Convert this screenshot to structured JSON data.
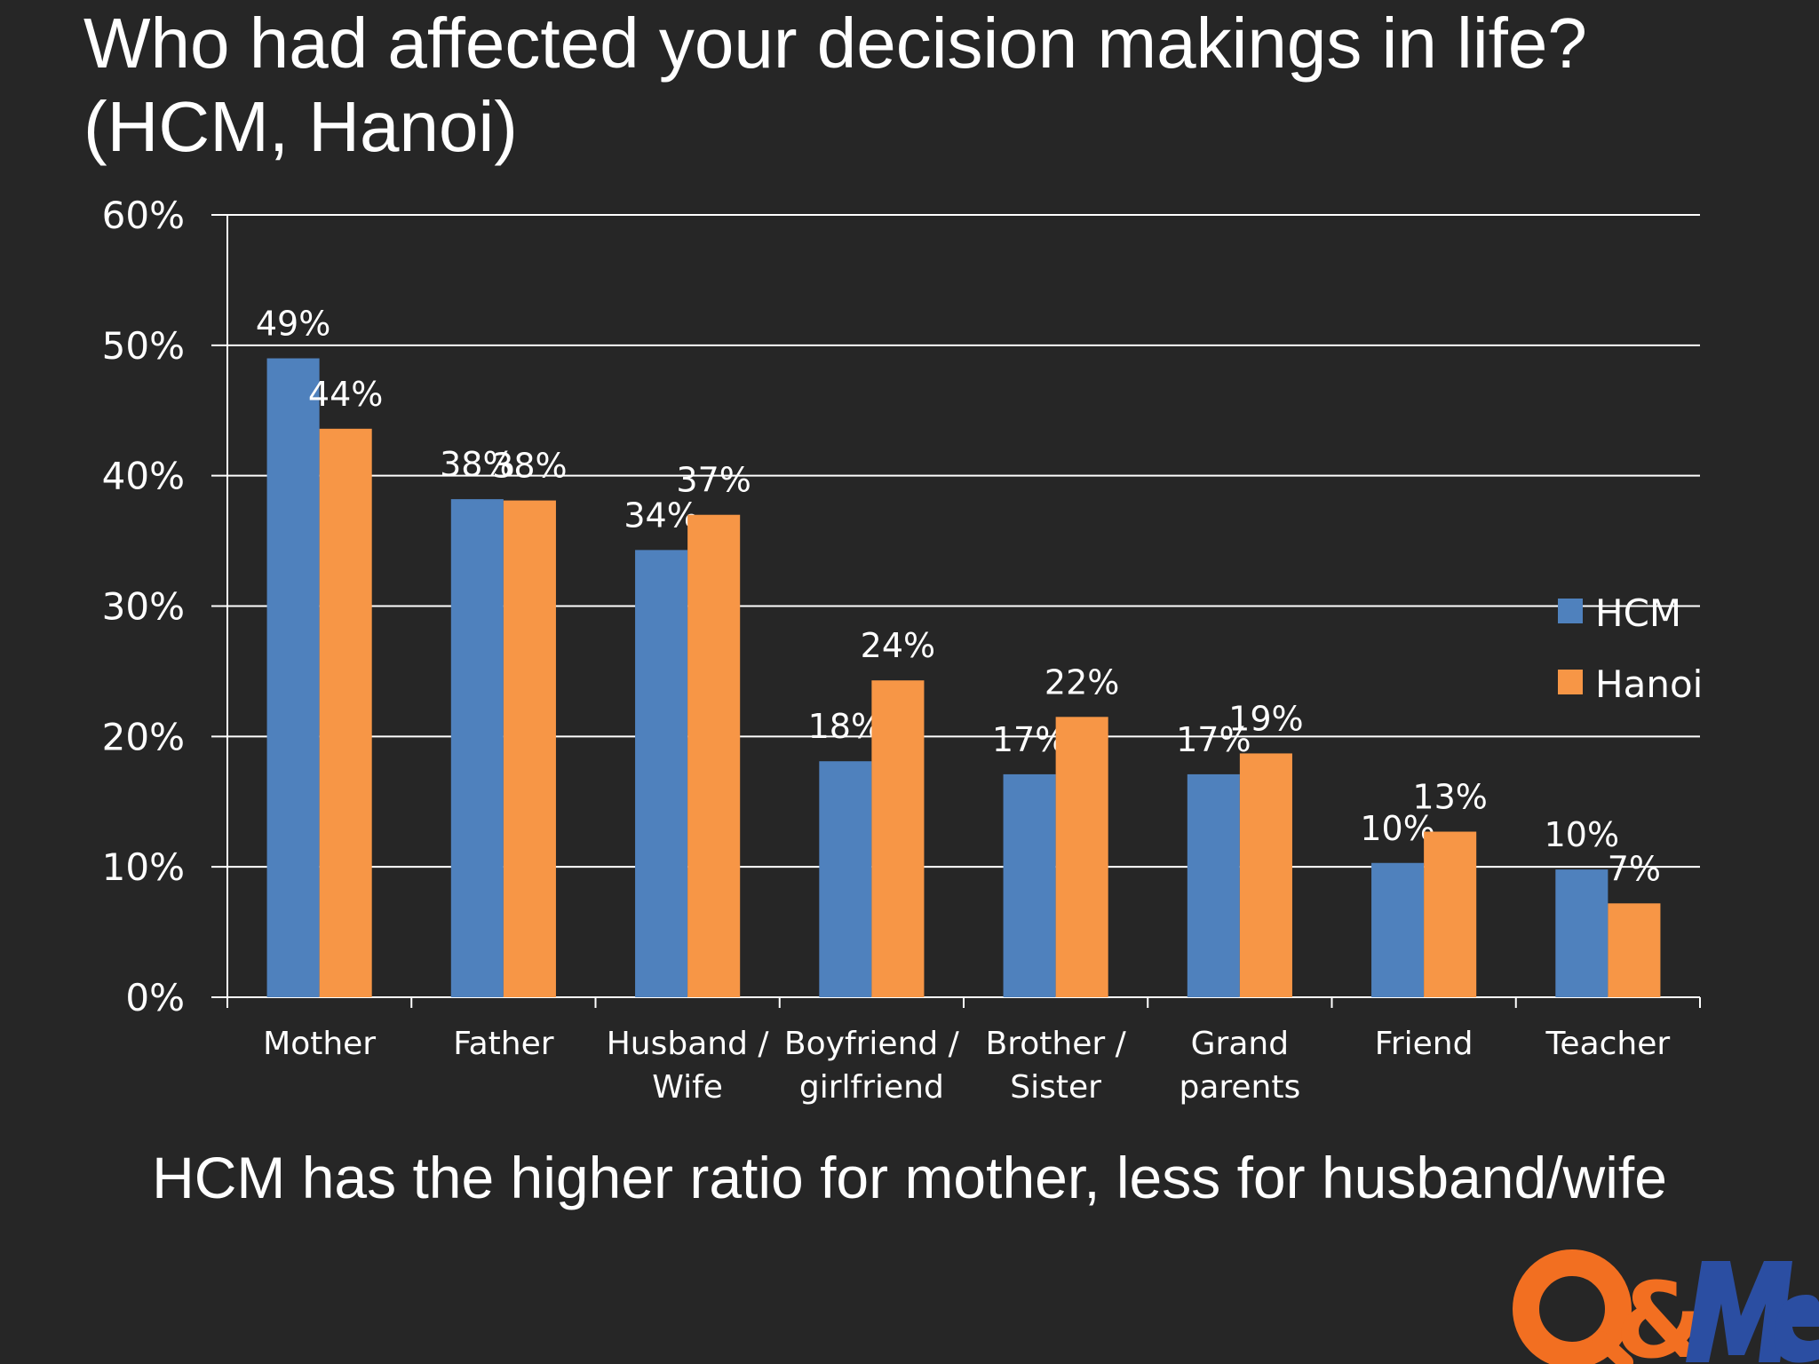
{
  "slide": {
    "title_line1": "Who had affected your decision makings in life?",
    "title_line2": "(HCM, Hanoi)",
    "caption": "HCM has the higher ratio for mother, less for husband/wife",
    "logo_text": "Q&Me"
  },
  "colors": {
    "background": "#262626",
    "hcm": "#4f81bd",
    "hanoi": "#f79646",
    "grid": "#ffffff",
    "text": "#ffffff",
    "logo_orange": "#f26f21",
    "logo_blue": "#2b4ea2"
  },
  "chart_data": {
    "type": "bar",
    "categories": [
      [
        "Mother"
      ],
      [
        "Father"
      ],
      [
        "Husband /",
        "Wife"
      ],
      [
        "Boyfriend /",
        "girlfriend"
      ],
      [
        "Brother /",
        "Sister"
      ],
      [
        "Grand",
        "parents"
      ],
      [
        "Friend"
      ],
      [
        "Teacher"
      ]
    ],
    "series": [
      {
        "name": "HCM",
        "values": [
          0.49,
          0.382,
          0.343,
          0.181,
          0.171,
          0.171,
          0.103,
          0.098
        ],
        "labels": [
          "49%",
          "38%",
          "34%",
          "18%",
          "17%",
          "17%",
          "10%",
          "10%"
        ]
      },
      {
        "name": "Hanoi",
        "values": [
          0.436,
          0.381,
          0.37,
          0.243,
          0.215,
          0.187,
          0.127,
          0.072
        ],
        "labels": [
          "44%",
          "38%",
          "37%",
          "24%",
          "22%",
          "19%",
          "13%",
          "7%"
        ]
      }
    ],
    "ylim": [
      0,
      0.6
    ],
    "yticks": [
      "0%",
      "10%",
      "20%",
      "30%",
      "40%",
      "50%",
      "60%"
    ],
    "grid": true,
    "legend_position": "right"
  }
}
